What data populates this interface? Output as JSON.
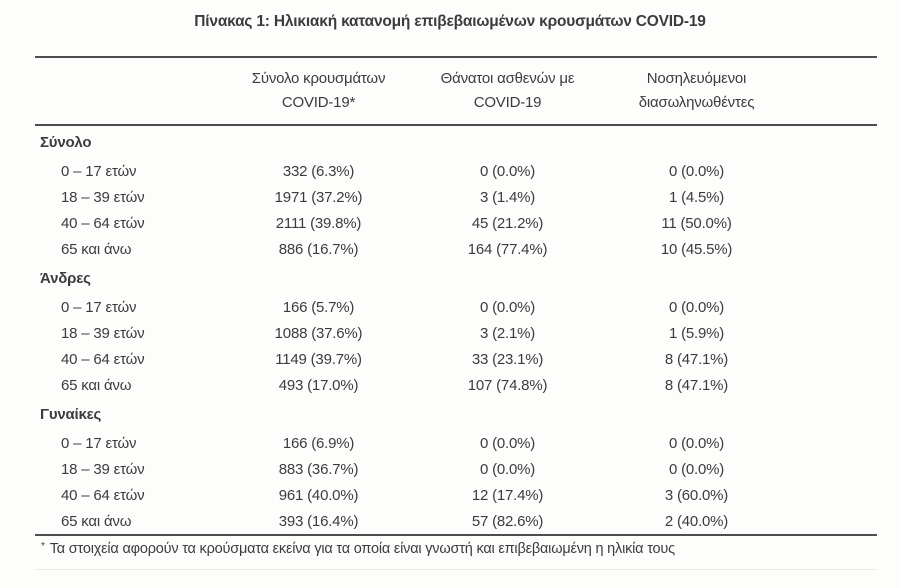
{
  "title": "Πίνακας 1: Ηλικιακή κατανομή επιβεβαιωμένων κρουσμάτων COVID-19",
  "table": {
    "headers": [
      {
        "line1": "Σύνολο κρουσμάτων",
        "line2": "COVID-19*"
      },
      {
        "line1": "Θάνατοι ασθενών με",
        "line2": "COVID-19"
      },
      {
        "line1": "Νοσηλευόμενοι",
        "line2": "διασωληνωθέντες"
      }
    ],
    "sections": [
      {
        "label": "Σύνολο",
        "rows": [
          {
            "age": "0 – 17 ετών",
            "cases": "332 (6.3%)",
            "deaths": "0 (0.0%)",
            "intubated": "0 (0.0%)"
          },
          {
            "age": "18 – 39 ετών",
            "cases": "1971 (37.2%)",
            "deaths": "3 (1.4%)",
            "intubated": "1 (4.5%)"
          },
          {
            "age": "40 – 64 ετών",
            "cases": "2111 (39.8%)",
            "deaths": "45 (21.2%)",
            "intubated": "11 (50.0%)"
          },
          {
            "age": "65 και άνω",
            "cases": "886 (16.7%)",
            "deaths": "164 (77.4%)",
            "intubated": "10 (45.5%)"
          }
        ]
      },
      {
        "label": "Άνδρες",
        "rows": [
          {
            "age": "0 – 17 ετών",
            "cases": "166 (5.7%)",
            "deaths": "0 (0.0%)",
            "intubated": "0 (0.0%)"
          },
          {
            "age": "18 – 39 ετών",
            "cases": "1088 (37.6%)",
            "deaths": "3 (2.1%)",
            "intubated": "1 (5.9%)"
          },
          {
            "age": "40 – 64 ετών",
            "cases": "1149 (39.7%)",
            "deaths": "33 (23.1%)",
            "intubated": "8 (47.1%)"
          },
          {
            "age": "65 και άνω",
            "cases": "493 (17.0%)",
            "deaths": "107 (74.8%)",
            "intubated": "8 (47.1%)"
          }
        ]
      },
      {
        "label": "Γυναίκες",
        "rows": [
          {
            "age": "0 – 17 ετών",
            "cases": "166 (6.9%)",
            "deaths": "0 (0.0%)",
            "intubated": "0 (0.0%)"
          },
          {
            "age": "18 – 39 ετών",
            "cases": "883 (36.7%)",
            "deaths": "0 (0.0%)",
            "intubated": "0 (0.0%)"
          },
          {
            "age": "40 – 64 ετών",
            "cases": "961 (40.0%)",
            "deaths": "12 (17.4%)",
            "intubated": "3 (60.0%)"
          },
          {
            "age": "65 και άνω",
            "cases": "393 (16.4%)",
            "deaths": "57 (82.6%)",
            "intubated": "2 (40.0%)"
          }
        ]
      }
    ]
  },
  "footnote": {
    "marker": "*",
    "text": "Τα στοιχεία αφορούν τα κρούσματα εκείνα για τα οποία είναι γνωστή και επιβεβαιωμένη η ηλικία τους"
  },
  "colors": {
    "text": "#3b3c3e",
    "rule_dark": "#4e4e50",
    "rule_light": "#e7e7e4",
    "background": "#fdfdfc"
  }
}
